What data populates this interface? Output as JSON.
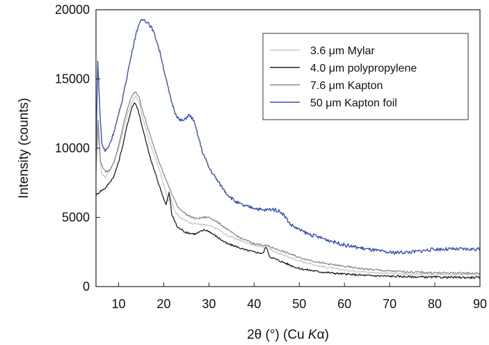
{
  "chart_data": {
    "type": "line",
    "xlabel": "2θ (°) (Cu Kα)",
    "xlabel_parts": {
      "prefix": "2θ (°) (Cu ",
      "italic": "K",
      "suffix": "α)"
    },
    "ylabel": "Intensity (counts)",
    "xlim": [
      5,
      90
    ],
    "ylim": [
      0,
      20000
    ],
    "xticks": [
      10,
      20,
      30,
      40,
      50,
      60,
      70,
      80,
      90
    ],
    "yticks": [
      0,
      5000,
      10000,
      15000,
      20000
    ],
    "grid": false,
    "legend_position": "top-right",
    "series": [
      {
        "name": "3.6 μm Mylar",
        "color": "#c8c8c8",
        "x": [
          5,
          5.3,
          5.6,
          6.2,
          7,
          8,
          9,
          10,
          11,
          12,
          13,
          13.8,
          14.5,
          15.5,
          17,
          19,
          21,
          21.5,
          22.5,
          24,
          26,
          28,
          29,
          30,
          32,
          34,
          36,
          38,
          40,
          42,
          42.6,
          43.5,
          45,
          48,
          50,
          55,
          60,
          65,
          70,
          75,
          80,
          85,
          90
        ],
        "y": [
          8000,
          11800,
          10500,
          8200,
          7900,
          8400,
          9000,
          10000,
          11200,
          12500,
          13400,
          13700,
          13300,
          12000,
          10300,
          8500,
          6200,
          6500,
          5400,
          4900,
          4600,
          4500,
          4450,
          4400,
          4150,
          3700,
          3450,
          3200,
          3000,
          2850,
          3000,
          2700,
          2450,
          2100,
          1850,
          1450,
          1200,
          1050,
          950,
          900,
          880,
          860,
          850
        ]
      },
      {
        "name": "4.0 μm polypropylene",
        "color": "#1e1e1e",
        "x": [
          5,
          6,
          7,
          8,
          9,
          10,
          11,
          12,
          13,
          13.6,
          14.3,
          15.5,
          17,
          19,
          20.5,
          21.2,
          21.8,
          23,
          25,
          27,
          29,
          30,
          32,
          34,
          36,
          38,
          40,
          42,
          42.6,
          43.5,
          45,
          48,
          50,
          55,
          60,
          65,
          70,
          75,
          80,
          85,
          90
        ],
        "y": [
          6600,
          6900,
          7100,
          7500,
          8000,
          9000,
          10300,
          11800,
          13000,
          13300,
          12800,
          11200,
          9300,
          7300,
          5900,
          6800,
          5200,
          4300,
          3900,
          3800,
          4100,
          4000,
          3550,
          3100,
          2900,
          2650,
          2500,
          2400,
          2900,
          2150,
          1950,
          1550,
          1300,
          1050,
          900,
          800,
          750,
          700,
          680,
          660,
          650
        ]
      },
      {
        "name": "7.6 μm Kapton",
        "color": "#8c8c8c",
        "x": [
          5,
          5.5,
          6,
          7,
          8,
          9,
          10,
          11,
          12,
          13,
          13.8,
          14.5,
          15.5,
          17,
          19,
          21,
          23,
          25,
          27,
          29,
          30,
          31,
          33,
          35,
          37,
          40,
          43,
          45,
          48,
          50,
          55,
          60,
          65,
          70,
          75,
          80,
          85,
          90
        ],
        "y": [
          8400,
          12000,
          9000,
          8300,
          8400,
          9000,
          10200,
          11600,
          12900,
          13800,
          14100,
          13700,
          12500,
          10900,
          9000,
          7300,
          5800,
          5200,
          4900,
          5000,
          5000,
          4850,
          4400,
          3900,
          3500,
          3100,
          2950,
          2700,
          2350,
          2100,
          1700,
          1450,
          1250,
          1120,
          1050,
          1000,
          980,
          960
        ]
      },
      {
        "name": "50 μm Kapton foil",
        "color": "#3a4fb0",
        "x": [
          5,
          5.4,
          5.8,
          6.3,
          7,
          7.6,
          8.5,
          9.5,
          10.5,
          11.5,
          12.5,
          13.5,
          14.5,
          15.5,
          16.5,
          17.5,
          18.5,
          19.5,
          20.5,
          21.5,
          22.5,
          23.5,
          24.5,
          25.5,
          26.5,
          27.5,
          28.5,
          30,
          32,
          34,
          36,
          38,
          40,
          42,
          44,
          46,
          47,
          48,
          50,
          52,
          55,
          58,
          60,
          65,
          70,
          75,
          80,
          85,
          90
        ],
        "y": [
          9800,
          16400,
          13000,
          10300,
          9800,
          10000,
          10700,
          11800,
          13000,
          14600,
          16200,
          17800,
          19000,
          19300,
          19100,
          18600,
          17700,
          16500,
          15000,
          13600,
          12600,
          12000,
          12000,
          12400,
          12100,
          11000,
          9800,
          8600,
          7600,
          6700,
          6100,
          5800,
          5700,
          5500,
          5600,
          5400,
          5000,
          4500,
          4100,
          3800,
          3500,
          3200,
          3000,
          2700,
          2450,
          2500,
          2700,
          2700,
          2700
        ]
      }
    ]
  }
}
